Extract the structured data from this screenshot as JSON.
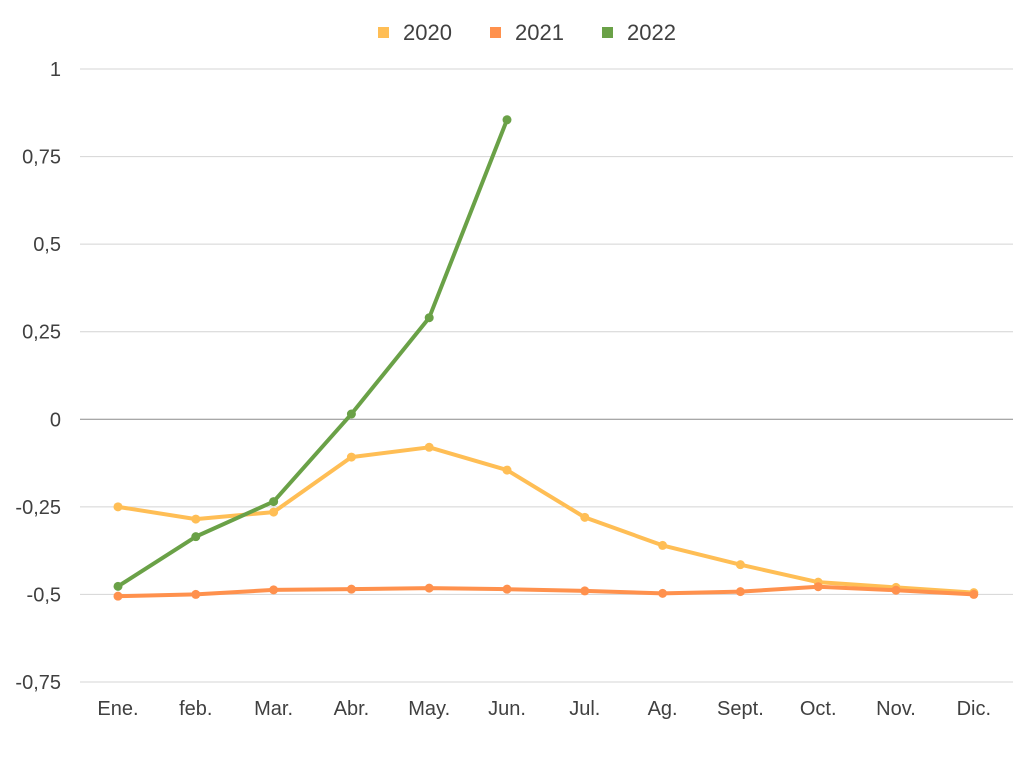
{
  "chart_data": {
    "type": "line",
    "categories": [
      "Ene.",
      "feb.",
      "Mar.",
      "Abr.",
      "May.",
      "Jun.",
      "Jul.",
      "Ag.",
      "Sept.",
      "Oct.",
      "Nov.",
      "Dic."
    ],
    "y_ticks": [
      1,
      0.75,
      0.5,
      0.25,
      0,
      -0.25,
      -0.5,
      -0.75
    ],
    "y_tick_labels": [
      "1",
      "0,75",
      "0,5",
      "0,25",
      "0",
      "-0,25",
      "-0,5",
      "-0,75"
    ],
    "ylim": [
      -0.75,
      1
    ],
    "grid": true,
    "legend_position": "top-center",
    "series": [
      {
        "name": "2020",
        "color": "#FFBE55",
        "values": [
          -0.25,
          -0.285,
          -0.265,
          -0.108,
          -0.08,
          -0.145,
          -0.28,
          -0.36,
          -0.415,
          -0.465,
          -0.48,
          -0.495
        ]
      },
      {
        "name": "2021",
        "color": "#FF914D",
        "values": [
          -0.505,
          -0.5,
          -0.487,
          -0.485,
          -0.482,
          -0.485,
          -0.49,
          -0.497,
          -0.492,
          -0.478,
          -0.488,
          -0.5
        ]
      },
      {
        "name": "2022",
        "color": "#6AA147",
        "values": [
          -0.477,
          -0.335,
          -0.235,
          0.015,
          0.29,
          0.855,
          null,
          null,
          null,
          null,
          null,
          null
        ]
      }
    ]
  }
}
